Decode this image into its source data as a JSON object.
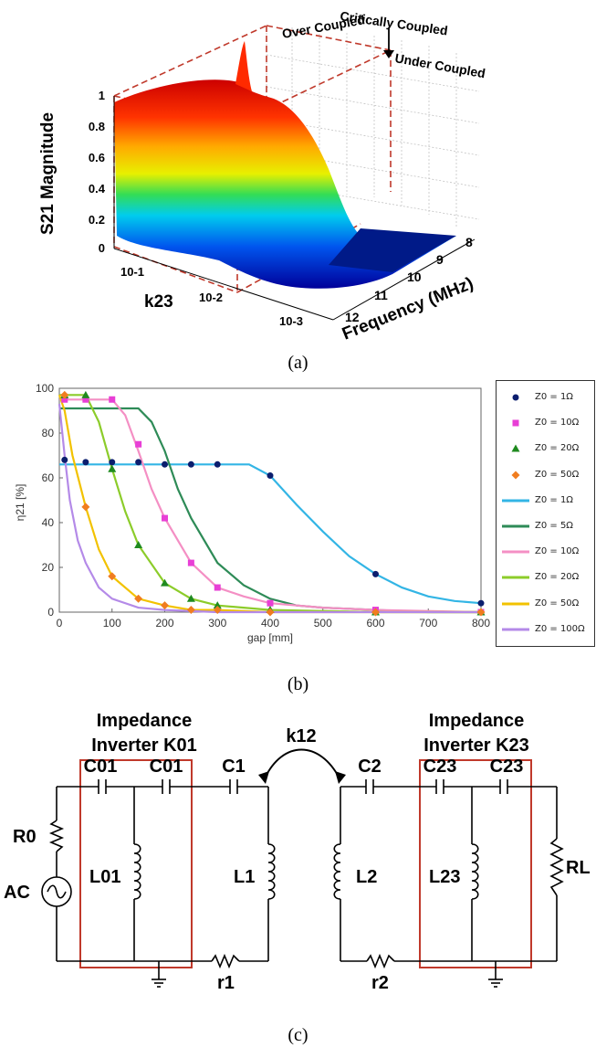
{
  "panels": {
    "a": {
      "caption": "(a)",
      "zlabel": "S21 Magnitude",
      "xlabel": "k23",
      "ylabel": "Frequency (MHz)",
      "z_ticks": [
        "0",
        "0.2",
        "0.4",
        "0.6",
        "0.8",
        "1"
      ],
      "k_ticks": [
        "10-1",
        "10-2",
        "10-3"
      ],
      "f_ticks": [
        "8",
        "9",
        "10",
        "11",
        "12"
      ],
      "annotations": {
        "over": "Over Coupled",
        "critical": "Critically Coupled",
        "under": "Under Coupled"
      }
    },
    "b": {
      "caption": "(b)",
      "chart_data": {
        "type": "line",
        "xlabel": "gap [mm]",
        "ylabel": "η21 [%]",
        "xlim": [
          0,
          800
        ],
        "ylim": [
          0,
          100
        ],
        "x_ticks": [
          0,
          100,
          200,
          300,
          400,
          500,
          600,
          700,
          800
        ],
        "y_ticks": [
          0,
          20,
          40,
          60,
          80,
          100
        ],
        "markers": [
          {
            "name": "Z0 = 1Ω",
            "color": "#0b1e6e",
            "shape": "circle",
            "x": [
              10,
              50,
              100,
              150,
              200,
              250,
              300,
              400,
              600,
              800
            ],
            "y": [
              68,
              67,
              67,
              67,
              66,
              66,
              66,
              61,
              17,
              4
            ]
          },
          {
            "name": "Z0 = 10Ω",
            "color": "#e83fd6",
            "shape": "square",
            "x": [
              10,
              50,
              100,
              150,
              200,
              250,
              300,
              400,
              600,
              800
            ],
            "y": [
              95,
              95,
              95,
              75,
              42,
              22,
              11,
              4,
              1,
              0
            ]
          },
          {
            "name": "Z0 = 20Ω",
            "color": "#1f8a1f",
            "shape": "triangle",
            "x": [
              10,
              50,
              100,
              150,
              200,
              250,
              300,
              400,
              600,
              800
            ],
            "y": [
              97,
              97,
              64,
              30,
              13,
              6,
              3,
              1,
              0,
              0
            ]
          },
          {
            "name": "Z0 = 50Ω",
            "color": "#f07d20",
            "shape": "diamond",
            "x": [
              10,
              50,
              100,
              150,
              200,
              250,
              300,
              400,
              600,
              800
            ],
            "y": [
              97,
              47,
              16,
              6,
              3,
              1,
              1,
              0,
              0,
              0
            ]
          }
        ],
        "lines": [
          {
            "name": "Z0 = 1Ω",
            "color": "#33b5e5",
            "x": [
              0,
              50,
              100,
              200,
              300,
              360,
              400,
              450,
              500,
              550,
              600,
              650,
              700,
              750,
              800
            ],
            "y": [
              66,
              66,
              66,
              66,
              66,
              66,
              61,
              48,
              36,
              25,
              17,
              11,
              7,
              5,
              4
            ]
          },
          {
            "name": "Z0 = 5Ω",
            "color": "#2e8b57",
            "x": [
              0,
              100,
              150,
              175,
              200,
              225,
              250,
              300,
              350,
              400,
              450,
              500,
              600,
              700,
              800
            ],
            "y": [
              91,
              91,
              91,
              85,
              72,
              55,
              42,
              22,
              12,
              6,
              3,
              2,
              1,
              0,
              0
            ]
          },
          {
            "name": "Z0 = 10Ω",
            "color": "#f48fc4",
            "x": [
              0,
              100,
              125,
              150,
              175,
              200,
              250,
              300,
              350,
              400,
              500,
              600,
              800
            ],
            "y": [
              95,
              95,
              88,
              72,
              55,
              42,
              22,
              11,
              7,
              4,
              2,
              1,
              0
            ]
          },
          {
            "name": "Z0 = 20Ω",
            "color": "#8ccc2a",
            "x": [
              0,
              50,
              75,
              100,
              125,
              150,
              200,
              250,
              300,
              350,
              400,
              600,
              800
            ],
            "y": [
              97,
              97,
              85,
              64,
              45,
              30,
              13,
              6,
              3,
              2,
              1,
              0,
              0
            ]
          },
          {
            "name": "Z0 = 50Ω",
            "color": "#f2c200",
            "x": [
              0,
              10,
              25,
              50,
              75,
              100,
              150,
              200,
              250,
              300,
              400,
              600,
              800
            ],
            "y": [
              97,
              90,
              70,
              47,
              28,
              16,
              6,
              3,
              1,
              1,
              0,
              0,
              0
            ]
          },
          {
            "name": "Z0 = 100Ω",
            "color": "#b48ae8",
            "x": [
              0,
              10,
              20,
              35,
              50,
              75,
              100,
              150,
              200,
              300,
              400,
              600,
              800
            ],
            "y": [
              93,
              70,
              50,
              32,
              22,
              11,
              6,
              2,
              1,
              0,
              0,
              0,
              0
            ]
          }
        ]
      },
      "legend": [
        {
          "label": "Z0 = 1Ω",
          "kind": "marker",
          "shape": "circle",
          "color": "#0b1e6e"
        },
        {
          "label": "Z0 = 10Ω",
          "kind": "marker",
          "shape": "square",
          "color": "#e83fd6"
        },
        {
          "label": "Z0 = 20Ω",
          "kind": "marker",
          "shape": "triangle",
          "color": "#1f8a1f"
        },
        {
          "label": "Z0 = 50Ω",
          "kind": "marker",
          "shape": "diamond",
          "color": "#f07d20"
        },
        {
          "label": "Z0 = 1Ω",
          "kind": "line",
          "color": "#33b5e5"
        },
        {
          "label": "Z0 = 5Ω",
          "kind": "line",
          "color": "#2e8b57"
        },
        {
          "label": "Z0 = 10Ω",
          "kind": "line",
          "color": "#f48fc4"
        },
        {
          "label": "Z0 = 20Ω",
          "kind": "line",
          "color": "#8ccc2a"
        },
        {
          "label": "Z0 = 50Ω",
          "kind": "line",
          "color": "#f2c200"
        },
        {
          "label": "Z0 = 100Ω",
          "kind": "line",
          "color": "#b48ae8"
        }
      ]
    },
    "c": {
      "caption": "(c)",
      "inv1_title1": "Impedance",
      "inv1_title2": "Inverter K01",
      "inv2_title1": "Impedance",
      "inv2_title2": "Inverter K23",
      "k12": "k12",
      "labels": {
        "c01a": "C01",
        "c01b": "C01",
        "c1": "C1",
        "c2": "C2",
        "c23a": "C23",
        "c23b": "C23",
        "r0": "R0",
        "ac": "AC",
        "l01": "L01",
        "l1": "L1",
        "l2": "L2",
        "l23": "L23",
        "rl": "RL",
        "r1": "r1",
        "r2": "r2"
      }
    }
  }
}
